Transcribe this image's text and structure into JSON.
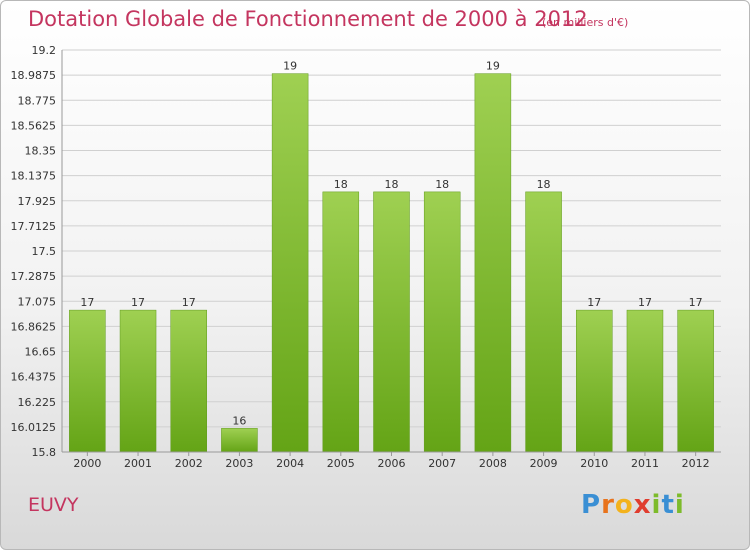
{
  "header": {
    "title": "Dotation Globale de Fonctionnement de 2000 à 2012",
    "unit": "(en milliers d'€)"
  },
  "footer": {
    "place": "EUVY",
    "logo_letters": [
      "P",
      "r",
      "o",
      "x",
      "i",
      "t",
      "i"
    ],
    "logo_colors": [
      "#3a8fd4",
      "#e8731c",
      "#f3b21c",
      "#e03c2e",
      "#7dbb2b",
      "#3a8fd4",
      "#7dbb2b"
    ]
  },
  "chart_data": {
    "type": "bar",
    "categories": [
      "2000",
      "2001",
      "2002",
      "2003",
      "2004",
      "2005",
      "2006",
      "2007",
      "2008",
      "2009",
      "2010",
      "2011",
      "2012"
    ],
    "values": [
      17,
      17,
      17,
      16,
      19,
      18,
      18,
      18,
      19,
      18,
      17,
      17,
      17
    ],
    "data_labels": [
      "17",
      "17",
      "17",
      "16",
      "19",
      "18",
      "18",
      "18",
      "19",
      "18",
      "17",
      "17",
      "17"
    ],
    "title": "",
    "xlabel": "",
    "ylabel": "",
    "ylim": [
      15.8,
      19.2
    ],
    "yticks": [
      15.8,
      16.0125,
      16.225,
      16.4375,
      16.65,
      16.8625,
      17.075,
      17.2875,
      17.5,
      17.7125,
      17.925,
      18.1375,
      18.35,
      18.5625,
      18.775,
      18.9875,
      19.2
    ],
    "ytick_labels": [
      "15.8",
      "16.0125",
      "16.225",
      "16.4375",
      "16.65",
      "16.8625",
      "17.075",
      "17.2875",
      "17.5",
      "17.7125",
      "17.925",
      "18.1375",
      "18.35",
      "18.5625",
      "18.775",
      "18.9875",
      "19.2"
    ],
    "grid": true,
    "bar_color": "#7ab830"
  }
}
